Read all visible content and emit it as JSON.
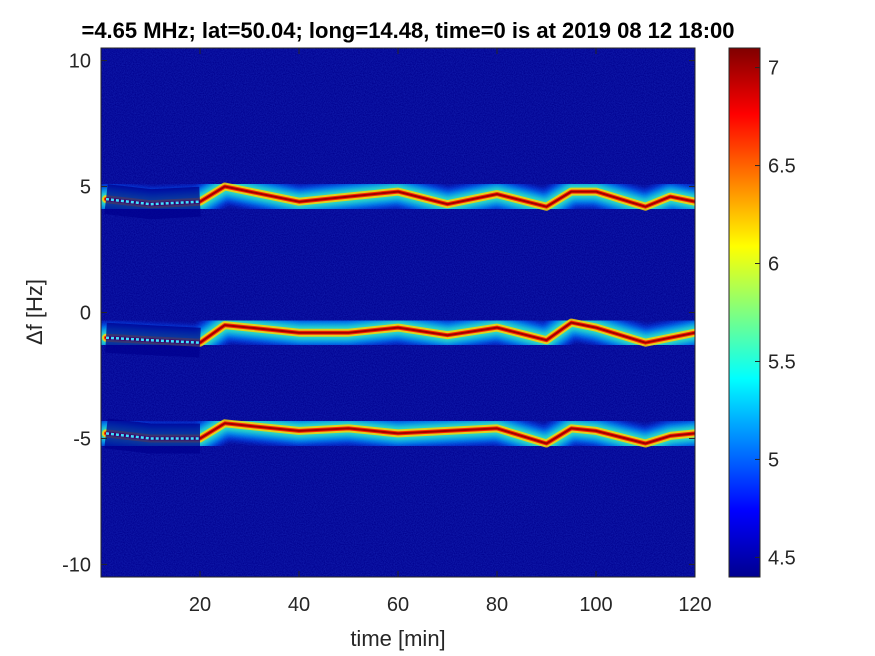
{
  "chart_data": {
    "type": "heatmap",
    "title": "=4.65 MHz;  lat=50.04; long=14.48, time=0 is at 2019 08 12 18:00",
    "xlabel": "time [min]",
    "ylabel": "Δf [Hz]",
    "xlim": [
      0,
      120
    ],
    "ylim": [
      -10.5,
      10.5
    ],
    "xticks": [
      20,
      40,
      60,
      80,
      100,
      120
    ],
    "xtick_labels": [
      "20",
      "40",
      "60",
      "80",
      "100",
      "120"
    ],
    "yticks": [
      -10,
      -5,
      0,
      5,
      10
    ],
    "ytick_labels": [
      "-10",
      "-5",
      "0",
      "5",
      "10"
    ],
    "colorbar": {
      "clim": [
        4.4,
        7.1
      ],
      "ticks": [
        4.5,
        5,
        5.5,
        6,
        6.5,
        7
      ],
      "tick_labels": [
        "4.5",
        "5",
        "5.5",
        "6",
        "6.5",
        "7"
      ],
      "colormap": "jet"
    },
    "background_color": "#00008f",
    "bands": [
      {
        "peak_value": 7.0,
        "trace": [
          [
            1,
            4.5
          ],
          [
            10,
            4.3
          ],
          [
            20,
            4.4
          ],
          [
            25,
            5.0
          ],
          [
            30,
            4.8
          ],
          [
            40,
            4.4
          ],
          [
            50,
            4.6
          ],
          [
            60,
            4.8
          ],
          [
            70,
            4.3
          ],
          [
            80,
            4.7
          ],
          [
            90,
            4.2
          ],
          [
            95,
            4.8
          ],
          [
            100,
            4.8
          ],
          [
            110,
            4.2
          ],
          [
            115,
            4.6
          ],
          [
            120,
            4.4
          ]
        ]
      },
      {
        "peak_value": 7.0,
        "trace": [
          [
            1,
            -1.0
          ],
          [
            10,
            -1.1
          ],
          [
            20,
            -1.2
          ],
          [
            25,
            -0.5
          ],
          [
            30,
            -0.6
          ],
          [
            40,
            -0.8
          ],
          [
            50,
            -0.8
          ],
          [
            60,
            -0.6
          ],
          [
            70,
            -0.9
          ],
          [
            80,
            -0.6
          ],
          [
            90,
            -1.1
          ],
          [
            95,
            -0.4
          ],
          [
            100,
            -0.6
          ],
          [
            110,
            -1.2
          ],
          [
            115,
            -1.0
          ],
          [
            120,
            -0.8
          ]
        ]
      },
      {
        "peak_value": 7.0,
        "trace": [
          [
            1,
            -4.8
          ],
          [
            10,
            -5.0
          ],
          [
            20,
            -5.0
          ],
          [
            25,
            -4.4
          ],
          [
            30,
            -4.5
          ],
          [
            40,
            -4.7
          ],
          [
            50,
            -4.6
          ],
          [
            60,
            -4.8
          ],
          [
            70,
            -4.7
          ],
          [
            80,
            -4.6
          ],
          [
            90,
            -5.2
          ],
          [
            95,
            -4.6
          ],
          [
            100,
            -4.7
          ],
          [
            110,
            -5.2
          ],
          [
            115,
            -4.9
          ],
          [
            120,
            -4.8
          ]
        ]
      }
    ]
  }
}
